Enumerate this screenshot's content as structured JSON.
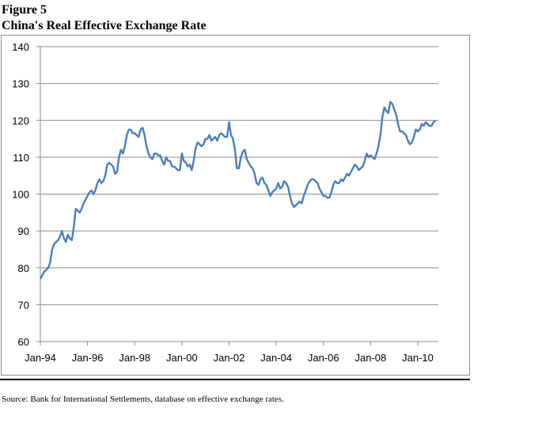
{
  "figure_label": "Figure 5",
  "title": "China's Real Effective Exchange Rate",
  "source": "Source:  Bank for International Settlements, database on effective exchange rates.",
  "chart_data": {
    "type": "line",
    "title": "China's Real Effective Exchange Rate",
    "xlabel": "",
    "ylabel": "",
    "ylim": [
      60,
      140
    ],
    "y_ticks": [
      "60",
      "70",
      "80",
      "90",
      "100",
      "110",
      "120",
      "130",
      "140"
    ],
    "x_ticks": [
      "Jan-94",
      "Jan-96",
      "Jan-98",
      "Jan-00",
      "Jan-02",
      "Jan-04",
      "Jan-06",
      "Jan-08",
      "Jan-10"
    ],
    "grid": true,
    "legend": "none",
    "line_color": "#4a7ebb",
    "series": [
      {
        "x": [
          "1994-01",
          "1994-02",
          "1994-03",
          "1994-04",
          "1994-05",
          "1994-06",
          "1994-07",
          "1994-08",
          "1994-09",
          "1994-10",
          "1994-11",
          "1994-12",
          "1995-01",
          "1995-02",
          "1995-03",
          "1995-04",
          "1995-05",
          "1995-06",
          "1995-07",
          "1995-08",
          "1995-09",
          "1995-10",
          "1995-11",
          "1995-12",
          "1996-01",
          "1996-02",
          "1996-03",
          "1996-04",
          "1996-05",
          "1996-06",
          "1996-07",
          "1996-08",
          "1996-09",
          "1996-10",
          "1996-11",
          "1996-12",
          "1997-01",
          "1997-02",
          "1997-03",
          "1997-04",
          "1997-05",
          "1997-06",
          "1997-07",
          "1997-08",
          "1997-09",
          "1997-10",
          "1997-11",
          "1997-12",
          "1998-01",
          "1998-02",
          "1998-03",
          "1998-04",
          "1998-05",
          "1998-06",
          "1998-07",
          "1998-08",
          "1998-09",
          "1998-10",
          "1998-11",
          "1998-12",
          "1999-01",
          "1999-02",
          "1999-03",
          "1999-04",
          "1999-05",
          "1999-06",
          "1999-07",
          "1999-08",
          "1999-09",
          "1999-10",
          "1999-11",
          "1999-12",
          "2000-01",
          "2000-02",
          "2000-03",
          "2000-04",
          "2000-05",
          "2000-06",
          "2000-07",
          "2000-08",
          "2000-09",
          "2000-10",
          "2000-11",
          "2000-12",
          "2001-01",
          "2001-02",
          "2001-03",
          "2001-04",
          "2001-05",
          "2001-06",
          "2001-07",
          "2001-08",
          "2001-09",
          "2001-10",
          "2001-11",
          "2001-12",
          "2002-01",
          "2002-02",
          "2002-03",
          "2002-04",
          "2002-05",
          "2002-06",
          "2002-07",
          "2002-08",
          "2002-09",
          "2002-10",
          "2002-11",
          "2002-12",
          "2003-01",
          "2003-02",
          "2003-03",
          "2003-04",
          "2003-05",
          "2003-06",
          "2003-07",
          "2003-08",
          "2003-09",
          "2003-10",
          "2003-11",
          "2003-12",
          "2004-01",
          "2004-02",
          "2004-03",
          "2004-04",
          "2004-05",
          "2004-06",
          "2004-07",
          "2004-08",
          "2004-09",
          "2004-10",
          "2004-11",
          "2004-12",
          "2005-01",
          "2005-02",
          "2005-03",
          "2005-04",
          "2005-05",
          "2005-06",
          "2005-07",
          "2005-08",
          "2005-09",
          "2005-10",
          "2005-11",
          "2005-12",
          "2006-01",
          "2006-02",
          "2006-03",
          "2006-04",
          "2006-05",
          "2006-06",
          "2006-07",
          "2006-08",
          "2006-09",
          "2006-10",
          "2006-11",
          "2006-12",
          "2007-01",
          "2007-02",
          "2007-03",
          "2007-04",
          "2007-05",
          "2007-06",
          "2007-07",
          "2007-08",
          "2007-09",
          "2007-10",
          "2007-11",
          "2007-12",
          "2008-01",
          "2008-02",
          "2008-03",
          "2008-04",
          "2008-05",
          "2008-06",
          "2008-07",
          "2008-08",
          "2008-09",
          "2008-10",
          "2008-11",
          "2008-12",
          "2009-01",
          "2009-02",
          "2009-03",
          "2009-04",
          "2009-05",
          "2009-06",
          "2009-07",
          "2009-08",
          "2009-09",
          "2009-10",
          "2009-11",
          "2009-12",
          "2010-01",
          "2010-02",
          "2010-03",
          "2010-04",
          "2010-05",
          "2010-06",
          "2010-07",
          "2010-08",
          "2010-09",
          "2010-10"
        ],
        "values": [
          77,
          78,
          79,
          79.5,
          80,
          81.5,
          85,
          86.5,
          87,
          87.5,
          88.5,
          90,
          88,
          87,
          89,
          88,
          87.5,
          91,
          96,
          95.5,
          95,
          96,
          97.5,
          98.5,
          99.5,
          100.5,
          101,
          100,
          101,
          103,
          104,
          103,
          103.5,
          105,
          108,
          108.5,
          108,
          107.5,
          105.5,
          106,
          110,
          112,
          111,
          113,
          116,
          117.5,
          117.5,
          116.5,
          116.5,
          116,
          115.5,
          117.5,
          118,
          116,
          113,
          111,
          110,
          109.5,
          111,
          111,
          110.5,
          110.5,
          109,
          108,
          110,
          109,
          109,
          107.5,
          107.5,
          107,
          106.5,
          106.5,
          111,
          109,
          108.5,
          107.5,
          108,
          106.5,
          109,
          112.5,
          114,
          113.5,
          113,
          113.5,
          115,
          115,
          116,
          114.5,
          115,
          115.5,
          114.5,
          116,
          116.5,
          116,
          115.5,
          115.5,
          119.5,
          116,
          115,
          112,
          107,
          107,
          110,
          111.5,
          112,
          109.5,
          108.5,
          107.5,
          107,
          105.5,
          103,
          102.5,
          104,
          104.5,
          103,
          102.5,
          101,
          99.5,
          100.5,
          101,
          101.5,
          103,
          101.5,
          102,
          103.5,
          103,
          102,
          99.5,
          97.5,
          96.5,
          97,
          97.5,
          98,
          97.5,
          99.5,
          101,
          102.5,
          103.5,
          104,
          104,
          103.5,
          103,
          101.5,
          100.5,
          99.5,
          99.5,
          99,
          99,
          100.5,
          102.5,
          103.5,
          103,
          103,
          104,
          103.5,
          104.5,
          105.5,
          105,
          106,
          107,
          108,
          107.5,
          106.5,
          107,
          107.5,
          109,
          111,
          110,
          110.5,
          110,
          109.5,
          111,
          113,
          116,
          121,
          123.5,
          122.5,
          122,
          125,
          124.5,
          123,
          121.5,
          119,
          117,
          117,
          116.5,
          116,
          114.5,
          113.5,
          114,
          115.5,
          117.5,
          117,
          117.5,
          119,
          118.5,
          119.5,
          119,
          118.5,
          118.5,
          119.5,
          120
        ]
      }
    ]
  }
}
